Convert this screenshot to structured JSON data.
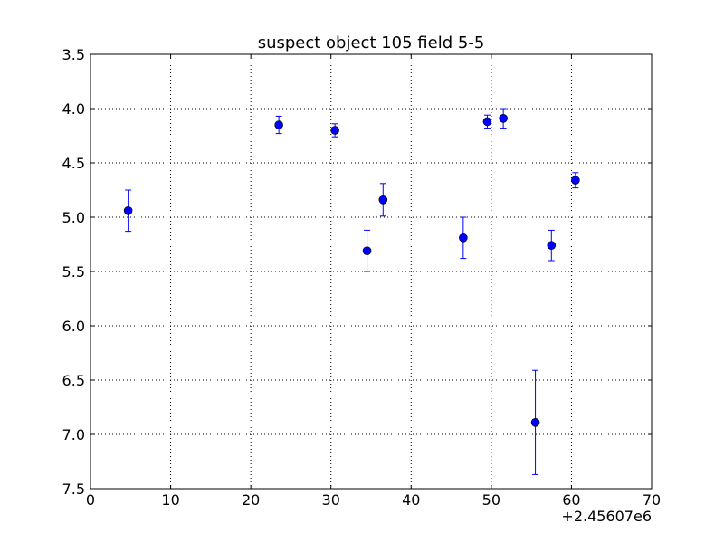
{
  "chart_data": {
    "type": "scatter",
    "title": "suspect object 105 field 5-5",
    "xlabel": "",
    "ylabel": "",
    "x_offset_label": "+2.45607e6",
    "xlim": [
      0,
      70
    ],
    "ylim": [
      3.5,
      7.5
    ],
    "y_inverted": true,
    "grid": true,
    "x_ticks": [
      0,
      10,
      20,
      30,
      40,
      50,
      60,
      70
    ],
    "x_tick_labels": [
      "0",
      "10",
      "20",
      "30",
      "40",
      "50",
      "60",
      "70"
    ],
    "y_ticks": [
      3.5,
      4.0,
      4.5,
      5.0,
      5.5,
      6.0,
      6.5,
      7.0,
      7.5
    ],
    "y_tick_labels": [
      "3.5",
      "4.0",
      "4.5",
      "5.0",
      "5.5",
      "6.0",
      "6.5",
      "7.0",
      "7.5"
    ],
    "series": [
      {
        "color": "#0000ff",
        "marker": "circle",
        "error_bars": true,
        "points": [
          {
            "x": 4.7,
            "y": 4.94,
            "yerr": 0.19
          },
          {
            "x": 23.5,
            "y": 4.15,
            "yerr": 0.08
          },
          {
            "x": 30.5,
            "y": 4.2,
            "yerr": 0.06
          },
          {
            "x": 34.5,
            "y": 5.31,
            "yerr": 0.19
          },
          {
            "x": 36.5,
            "y": 4.84,
            "yerr": 0.15
          },
          {
            "x": 46.5,
            "y": 5.19,
            "yerr": 0.19
          },
          {
            "x": 49.5,
            "y": 4.12,
            "yerr": 0.06
          },
          {
            "x": 51.5,
            "y": 4.09,
            "yerr": 0.09
          },
          {
            "x": 55.5,
            "y": 6.89,
            "yerr": 0.48
          },
          {
            "x": 57.5,
            "y": 5.26,
            "yerr": 0.14
          },
          {
            "x": 60.5,
            "y": 4.66,
            "yerr": 0.07
          }
        ]
      }
    ]
  }
}
